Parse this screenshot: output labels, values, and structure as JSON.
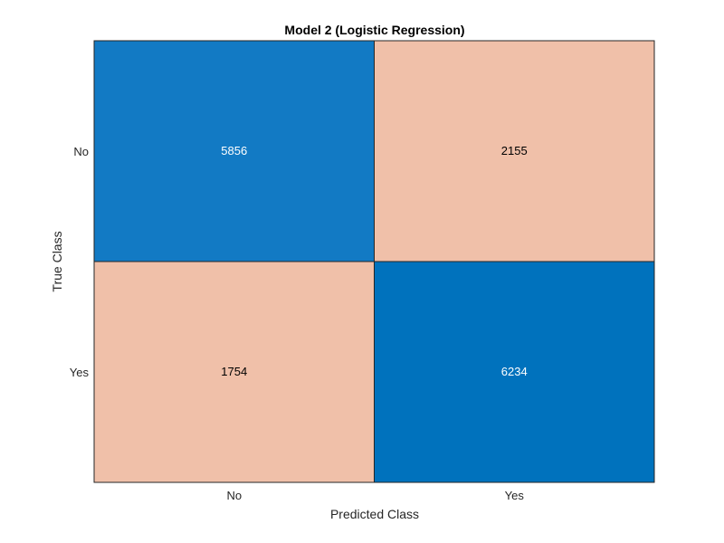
{
  "chart_data": {
    "type": "heatmap",
    "title": "Model 2 (Logistic Regression)",
    "xlabel": "Predicted Class",
    "ylabel": "True Class",
    "x_categories": [
      "No",
      "Yes"
    ],
    "y_categories": [
      "No",
      "Yes"
    ],
    "values": [
      [
        5856,
        2155
      ],
      [
        1754,
        6234
      ]
    ],
    "colors": {
      "correct": "#0072BD",
      "correct_lighter": "#127AC4",
      "incorrect": "#F0C0A9",
      "text_on_dark": "#ffffff",
      "text_on_light": "#000000"
    },
    "grid": false,
    "legend": "none"
  }
}
